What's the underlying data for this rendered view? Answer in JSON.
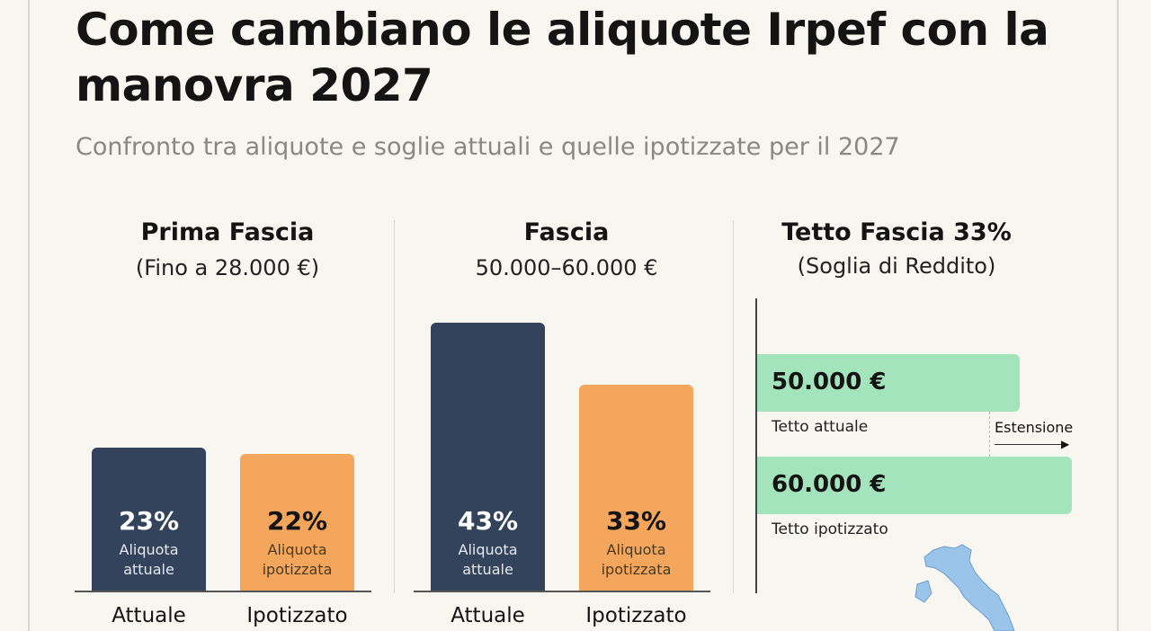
{
  "title": "Come cambiano le aliquote Irpef con la manovra 2027",
  "subtitle": "Confronto tra aliquote e soglie attuali e quelle ipotizzate per il 2027",
  "colors": {
    "attuale": "#33435c",
    "ipotizzato": "#f3a65c",
    "band": "#a4e4bc"
  },
  "chart_data": [
    {
      "type": "bar",
      "title": "Prima Fascia",
      "subtitle": "(Fino a 28.000 €)",
      "categories": [
        "Attuale",
        "Ipotizzato"
      ],
      "values": [
        23,
        22
      ],
      "value_labels": [
        "23%",
        "22%"
      ],
      "bar_notes": [
        "Aliquota attuale",
        "Aliquota ipotizzata"
      ]
    },
    {
      "type": "bar",
      "title": "Fascia",
      "subtitle": "50.000–60.000 €",
      "categories": [
        "Attuale",
        "Ipotizzato"
      ],
      "values": [
        43,
        33
      ],
      "value_labels": [
        "43%",
        "33%"
      ],
      "bar_notes": [
        "Aliquota attuale",
        "Aliquota ipotizzata"
      ]
    },
    {
      "type": "bar",
      "orientation": "horizontal",
      "title": "Tetto Fascia 33%",
      "subtitle": "(Soglia di Reddito)",
      "categories": [
        "Tetto attuale",
        "Tetto ipotizzato"
      ],
      "values": [
        50000,
        60000
      ],
      "value_labels": [
        "50.000 €",
        "60.000 €"
      ],
      "annotation": "Estensione",
      "icon": "italy-map-icon"
    }
  ]
}
